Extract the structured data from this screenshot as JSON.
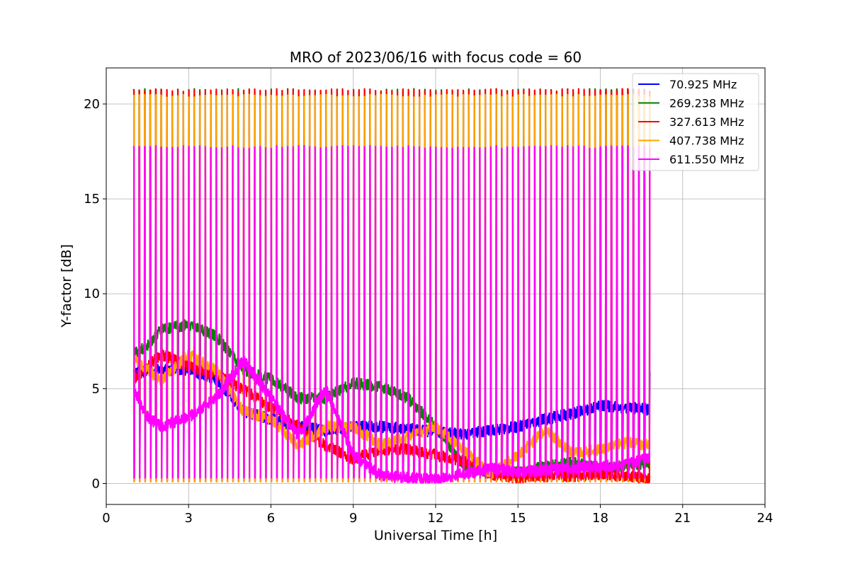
{
  "chart_data": {
    "type": "line",
    "title": "MRO of 2023/06/16 with focus code = 60",
    "xlabel": "Universal Time [h]",
    "ylabel": "Y-factor [dB]",
    "xlim": [
      0,
      24
    ],
    "ylim": [
      -1.1,
      21.9
    ],
    "xticks": [
      0,
      3,
      6,
      9,
      12,
      15,
      18,
      21,
      24
    ],
    "yticks": [
      0,
      5,
      10,
      15,
      20
    ],
    "grid": true,
    "legend_position": "top-right",
    "spike_interval_h": 0.2,
    "spike_range_h": [
      1.0,
      19.8
    ],
    "series": [
      {
        "name": " 70.925 MHz",
        "color": "#0000ff",
        "spike_peak": 6.0,
        "spike_min": 0.15,
        "baseline": [
          [
            1.0,
            5.8
          ],
          [
            2.0,
            6.0
          ],
          [
            3.0,
            6.0
          ],
          [
            4.0,
            5.5
          ],
          [
            5.0,
            3.8
          ],
          [
            6.0,
            3.4
          ],
          [
            7.0,
            3.0
          ],
          [
            8.0,
            2.8
          ],
          [
            9.0,
            3.0
          ],
          [
            10.0,
            3.0
          ],
          [
            11.0,
            2.9
          ],
          [
            12.0,
            2.7
          ],
          [
            13.0,
            2.6
          ],
          [
            14.0,
            2.8
          ],
          [
            15.0,
            3.0
          ],
          [
            16.0,
            3.4
          ],
          [
            17.0,
            3.7
          ],
          [
            18.0,
            4.1
          ],
          [
            19.0,
            4.0
          ],
          [
            19.8,
            3.9
          ]
        ]
      },
      {
        "name": "269.238 MHz",
        "color": "#008000",
        "spike_peak": 20.8,
        "spike_min": 0.3,
        "baseline": [
          [
            1.0,
            6.8
          ],
          [
            1.5,
            7.3
          ],
          [
            2.0,
            8.1
          ],
          [
            3.0,
            8.4
          ],
          [
            4.0,
            7.8
          ],
          [
            5.0,
            6.0
          ],
          [
            6.0,
            5.5
          ],
          [
            7.0,
            4.5
          ],
          [
            8.0,
            4.5
          ],
          [
            9.0,
            5.3
          ],
          [
            10.0,
            5.1
          ],
          [
            11.0,
            4.5
          ],
          [
            12.0,
            3.0
          ],
          [
            13.0,
            1.0
          ],
          [
            14.0,
            0.5
          ],
          [
            15.0,
            0.6
          ],
          [
            16.0,
            0.9
          ],
          [
            17.0,
            1.1
          ],
          [
            18.0,
            0.8
          ],
          [
            19.0,
            0.9
          ],
          [
            19.8,
            1.1
          ]
        ]
      },
      {
        "name": "327.613 MHz",
        "color": "#ff0000",
        "spike_peak": 20.8,
        "spike_min": 0.1,
        "baseline": [
          [
            1.0,
            5.5
          ],
          [
            2.0,
            6.8
          ],
          [
            3.0,
            6.2
          ],
          [
            4.0,
            5.7
          ],
          [
            5.0,
            5.0
          ],
          [
            6.0,
            4.0
          ],
          [
            7.0,
            3.0
          ],
          [
            8.0,
            2.0
          ],
          [
            9.0,
            1.3
          ],
          [
            10.0,
            1.8
          ],
          [
            11.0,
            1.8
          ],
          [
            12.0,
            1.5
          ],
          [
            13.0,
            1.2
          ],
          [
            14.0,
            0.5
          ],
          [
            15.0,
            0.3
          ],
          [
            16.0,
            0.4
          ],
          [
            17.0,
            0.4
          ],
          [
            18.0,
            0.5
          ],
          [
            19.0,
            0.4
          ],
          [
            19.8,
            0.2
          ]
        ]
      },
      {
        "name": "407.738 MHz",
        "color": "#ffa500",
        "spike_peak": 20.5,
        "spike_min": 0.1,
        "baseline": [
          [
            1.0,
            6.6
          ],
          [
            2.0,
            5.4
          ],
          [
            3.0,
            6.8
          ],
          [
            4.0,
            6.0
          ],
          [
            5.0,
            3.8
          ],
          [
            6.0,
            3.4
          ],
          [
            7.0,
            2.0
          ],
          [
            8.0,
            3.0
          ],
          [
            9.0,
            3.0
          ],
          [
            10.0,
            2.0
          ],
          [
            11.0,
            2.5
          ],
          [
            12.0,
            3.0
          ],
          [
            13.0,
            1.8
          ],
          [
            14.0,
            0.5
          ],
          [
            15.0,
            1.5
          ],
          [
            16.0,
            2.8
          ],
          [
            17.0,
            1.6
          ],
          [
            18.0,
            1.8
          ],
          [
            19.0,
            2.2
          ],
          [
            19.8,
            2.0
          ]
        ]
      },
      {
        "name": "611.550 MHz",
        "color": "#ff00ff",
        "spike_peak": 17.8,
        "spike_min": 0.3,
        "baseline": [
          [
            1.0,
            5.0
          ],
          [
            1.5,
            3.5
          ],
          [
            2.0,
            3.0
          ],
          [
            3.0,
            3.5
          ],
          [
            4.0,
            4.5
          ],
          [
            5.0,
            6.5
          ],
          [
            6.0,
            4.5
          ],
          [
            7.0,
            2.5
          ],
          [
            8.0,
            5.0
          ],
          [
            9.0,
            1.5
          ],
          [
            10.0,
            0.4
          ],
          [
            11.0,
            0.3
          ],
          [
            12.0,
            0.2
          ],
          [
            13.0,
            0.5
          ],
          [
            14.0,
            0.8
          ],
          [
            15.0,
            0.6
          ],
          [
            16.0,
            0.7
          ],
          [
            17.0,
            0.8
          ],
          [
            18.0,
            0.9
          ],
          [
            19.0,
            1.0
          ],
          [
            19.8,
            1.4
          ]
        ]
      }
    ]
  }
}
